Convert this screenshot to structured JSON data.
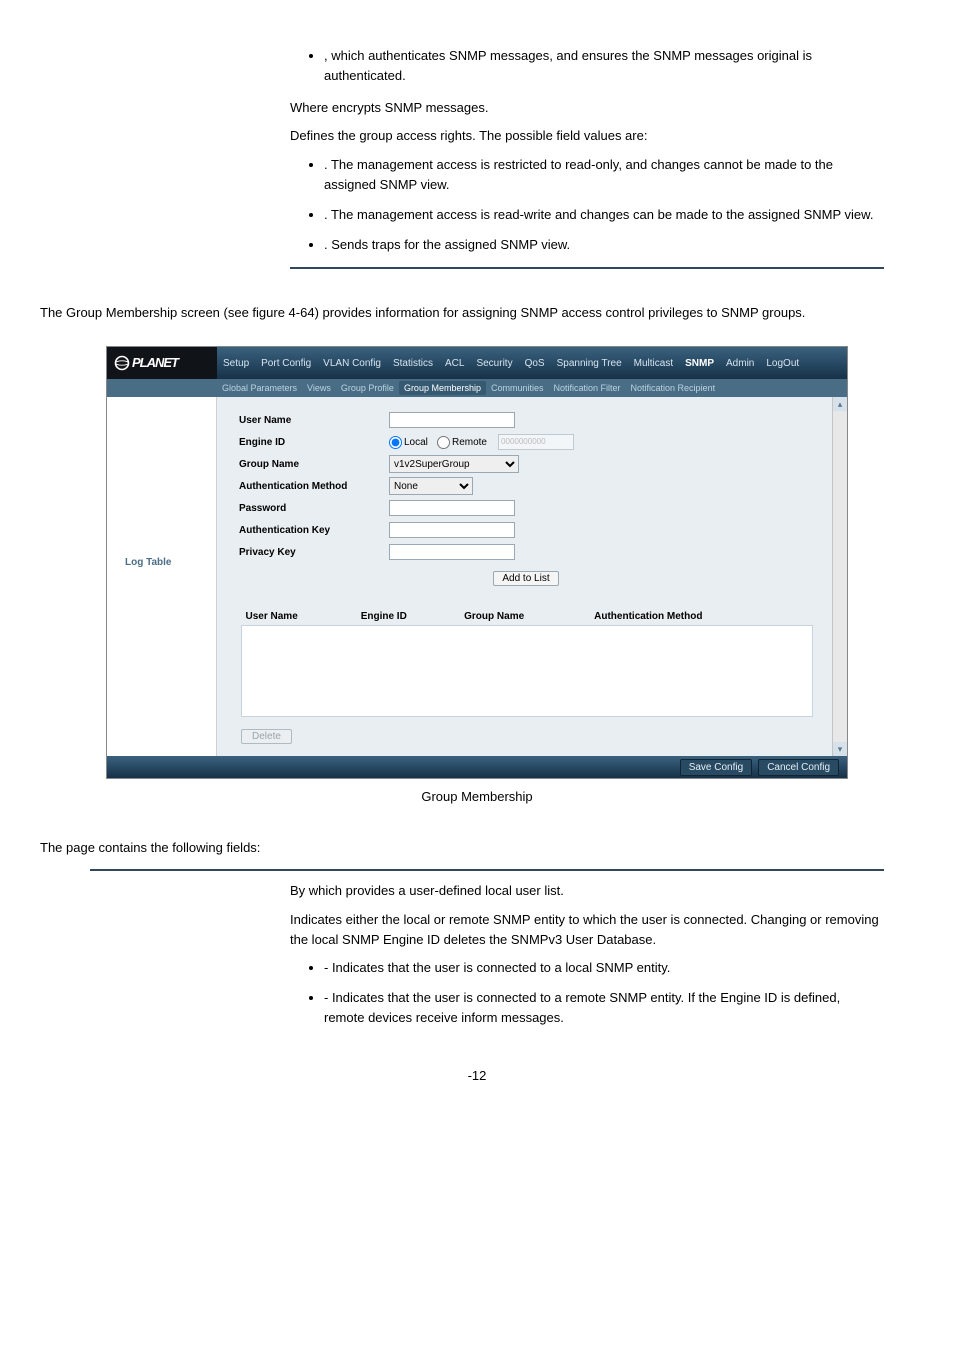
{
  "top_block": {
    "bullet1": ", which authenticates SNMP messages, and ensures the SNMP messages original is authenticated.",
    "where_line": "Where encrypts SNMP messages.",
    "defines_line": "Defines the group access rights. The possible field values are:",
    "b_read": ". The management access is restricted to read-only, and changes cannot be made to the assigned SNMP view.",
    "b_write": ". The management access is read-write and changes can be made to the assigned SNMP view.",
    "b_traps": ". Sends traps for the assigned SNMP view."
  },
  "intro_text": "The Group Membership screen (see figure 4-64) provides information for assigning SNMP access control privileges to SNMP groups.",
  "shot": {
    "logo": "PLANET",
    "main_tabs": [
      "Setup",
      "Port Config",
      "VLAN Config",
      "Statistics",
      "ACL",
      "Security",
      "QoS",
      "Spanning Tree",
      "Multicast",
      "SNMP",
      "Admin",
      "LogOut"
    ],
    "main_active_index": 9,
    "sub_tabs": [
      "Global Parameters",
      "Views",
      "Group Profile",
      "Group Membership",
      "Communities",
      "Notification Filter",
      "Notification Recipient"
    ],
    "sub_active_index": 3,
    "left_label": "Log Table",
    "form": {
      "user_name": "User Name",
      "engine_id": "Engine ID",
      "engine_local": "Local",
      "engine_remote": "Remote",
      "remote_placeholder": "0000000000",
      "group_name": "Group Name",
      "group_select": "v1v2SuperGroup",
      "auth_method": "Authentication Method",
      "auth_select": "None",
      "password": "Password",
      "auth_key": "Authentication Key",
      "privacy_key": "Privacy Key",
      "add_btn": "Add to List"
    },
    "table_headers": [
      "User Name",
      "Engine ID",
      "Group Name",
      "Authentication Method"
    ],
    "delete_btn": "Delete",
    "save_btn": "Save Config",
    "cancel_btn": "Cancel Config"
  },
  "caption": "Group Membership",
  "fields_intro": "The page contains the following fields:",
  "lower": {
    "p1": "By which provides a user-defined local user list.",
    "p2": "Indicates either the local or remote SNMP entity to which the user is connected. Changing or removing the local SNMP Engine ID deletes the SNMPv3 User Database.",
    "b_local": "- Indicates that the user is connected to a local SNMP entity.",
    "b_remote": "- Indicates that the user is connected to a remote SNMP entity. If the Engine ID is defined, remote devices receive inform messages."
  },
  "page_num": "-12"
}
